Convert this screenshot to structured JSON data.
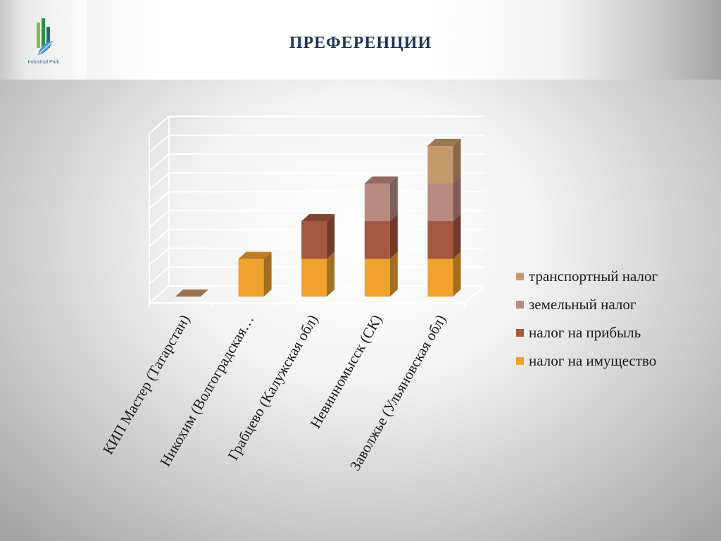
{
  "header": {
    "logo_text": "Industrial Park",
    "logo_subtext": "",
    "title": "ПРЕФЕРЕНЦИИ"
  },
  "colors": {
    "header_title": "#1f3556",
    "logo_green": "#2f8f3f",
    "logo_leaf": "#7cc243",
    "gridline": "#ffffff"
  },
  "chart_data": {
    "type": "bar",
    "stacked": true,
    "three_d": true,
    "title": "",
    "xlabel": "",
    "ylabel": "",
    "categories": [
      "КИП Мастер (Татарстан)",
      "Никохим (Волгоградская…",
      "Грабцево (Калужская обл)",
      "Невинномысск (СК)",
      "Заволжье (Ульяновская обл)"
    ],
    "series": [
      {
        "name": "налог на имущество",
        "color": "#f0a22e",
        "values": [
          0,
          1,
          1,
          1,
          1
        ]
      },
      {
        "name": "налог на прибыль",
        "color": "#a5573f",
        "values": [
          0,
          0,
          1,
          1,
          1
        ]
      },
      {
        "name": "земельный налог",
        "color": "#b88a80",
        "values": [
          0,
          0,
          0,
          1,
          1
        ]
      },
      {
        "name": "транспортный налог",
        "color": "#c49a6c",
        "values": [
          0,
          0,
          0,
          0,
          1
        ]
      }
    ],
    "ylim": [
      0,
      4.5
    ],
    "grid": true,
    "y_tick_labels_visible": false,
    "legend_position": "right",
    "legend_order": [
      "транспортный налог",
      "земельный налог",
      "налог на прибыль",
      "налог на имущество"
    ]
  }
}
